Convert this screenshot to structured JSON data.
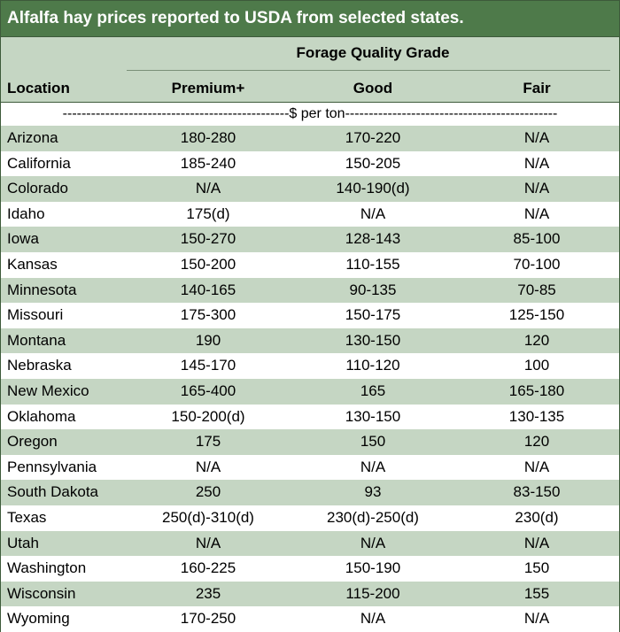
{
  "table": {
    "title": "Alfalfa hay prices reported to USDA from selected states.",
    "grade_header": "Forage Quality Grade",
    "columns": [
      "Location",
      "Premium+",
      "Good",
      "Fair"
    ],
    "unit_row": "------------------------------------------------$ per ton---------------------------------------------",
    "rows": [
      [
        "Arizona",
        "180-280",
        "170-220",
        "N/A"
      ],
      [
        "California",
        "185-240",
        "150-205",
        "N/A"
      ],
      [
        "Colorado",
        "N/A",
        "140-190(d)",
        "N/A"
      ],
      [
        "Idaho",
        "175(d)",
        "N/A",
        "N/A"
      ],
      [
        "Iowa",
        "150-270",
        "128-143",
        "85-100"
      ],
      [
        "Kansas",
        "150-200",
        "110-155",
        "70-100"
      ],
      [
        "Minnesota",
        "140-165",
        "90-135",
        "70-85"
      ],
      [
        "Missouri",
        "175-300",
        "150-175",
        "125-150"
      ],
      [
        "Montana",
        "190",
        "130-150",
        "120"
      ],
      [
        "Nebraska",
        "145-170",
        "110-120",
        "100"
      ],
      [
        "New Mexico",
        "165-400",
        "165",
        "165-180"
      ],
      [
        "Oklahoma",
        "150-200(d)",
        "130-150",
        "130-135"
      ],
      [
        "Oregon",
        "175",
        "150",
        "120"
      ],
      [
        "Pennsylvania",
        "N/A",
        "N/A",
        "N/A"
      ],
      [
        "South Dakota",
        "250",
        "93",
        "83-150"
      ],
      [
        "Texas",
        "250(d)-310(d)",
        "230(d)-250(d)",
        "230(d)"
      ],
      [
        "Utah",
        "N/A",
        "N/A",
        "N/A"
      ],
      [
        "Washington",
        "160-225",
        "150-190",
        "150"
      ],
      [
        "Wisconsin",
        "235",
        "115-200",
        "155"
      ],
      [
        "Wyoming",
        "170-250",
        "N/A",
        "N/A"
      ]
    ]
  },
  "colors": {
    "title_bg": "#4e7a4a",
    "band": "#c5d6c3",
    "border": "#3d5a3a"
  }
}
